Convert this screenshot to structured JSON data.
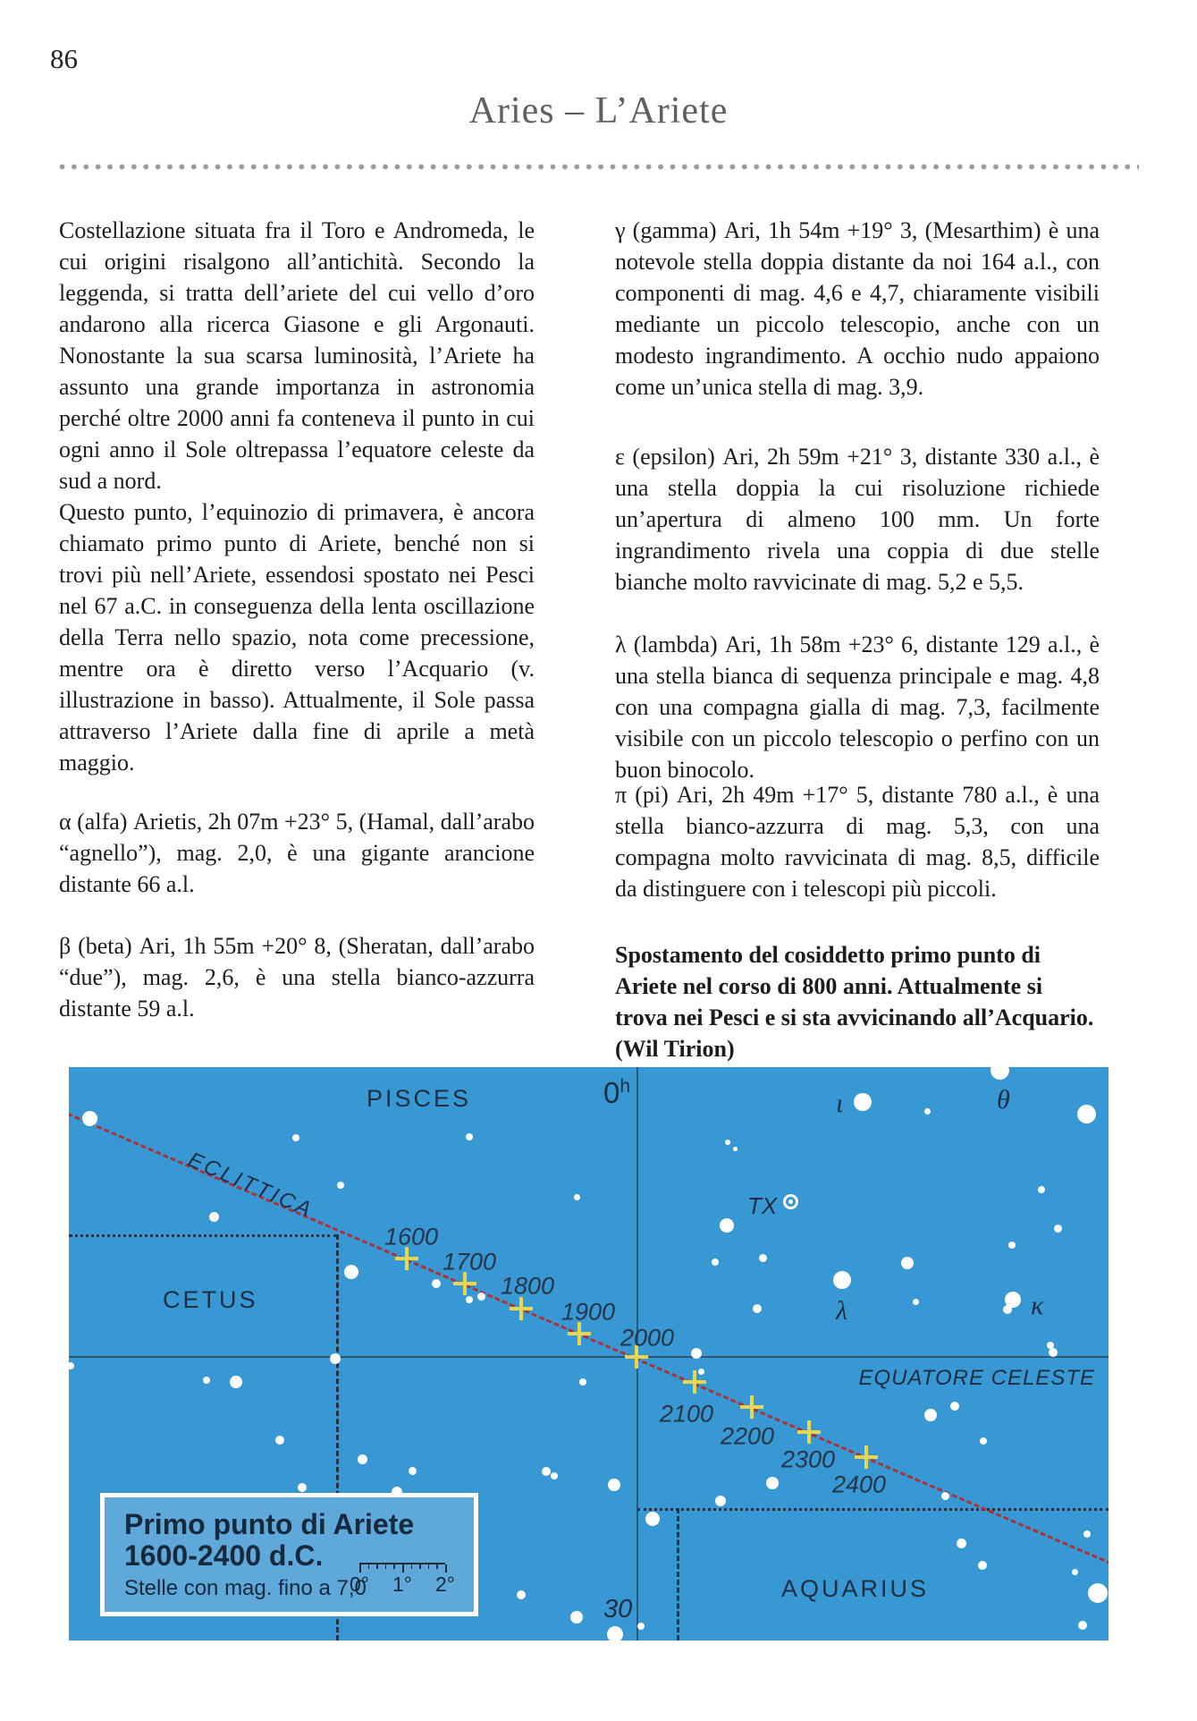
{
  "page": {
    "number": "86",
    "title": "Aries – L’Ariete"
  },
  "article": {
    "left": [
      {
        "text": "Costellazione situata fra il Toro e Andromeda, le cui origini risalgono all’antichità. Secondo la leggenda, si tratta dell’ariete del cui vello d’oro andarono alla ricerca Giasone e gli Argonauti. Nonostante la sua scarsa luminosità, l’Ariete ha assunto una grande importanza in astronomia perché oltre 2000 anni fa conteneva il punto in cui ogni anno il Sole oltrepassa l’equatore celeste da sud a nord."
      },
      {
        "text": "Questo punto, l’equinozio di primavera, è ancora chiamato primo punto di Ariete, benché non si trovi più nell’Ariete, essendosi spostato nei Pesci nel 67 a.C. in conseguenza della lenta oscillazione della Terra nello spazio, nota come precessione, mentre ora è diretto verso l’Acquario (v. illustrazione in basso). Attualmente, il Sole passa attraverso l’Ariete dalla fine di aprile a metà maggio."
      },
      {
        "text": "α (alfa) Arietis, 2h 07m +23° 5, (Hamal, dall’arabo “agnello”), mag. 2,0, è una gigante arancione distante 66 a.l."
      },
      {
        "text": "β (beta) Ari, 1h 55m +20° 8, (Sheratan, dall’arabo “due”), mag. 2,6, è una stella bianco-azzurra distante 59 a.l."
      }
    ],
    "right": [
      {
        "text": "γ (gamma) Ari, 1h 54m +19° 3, (Mesarthim) è una notevole stella doppia distante da noi 164 a.l., con componenti di mag. 4,6 e 4,7, chiaramente visibili mediante un piccolo telescopio, anche con un modesto ingrandimento. A occhio nudo appaiono come un’unica stella di mag. 3,9."
      },
      {
        "text": "ε (epsilon) Ari, 2h 59m +21° 3, distante 330 a.l., è una stella doppia la cui risoluzione richiede un’apertura di almeno 100 mm. Un forte ingrandimento rivela una coppia di due stelle bianche molto ravvicinate di mag. 5,2 e 5,5."
      },
      {
        "text": "λ (lambda) Ari, 1h 58m +23° 6, distante 129 a.l., è una stella bianca di sequenza principale e mag. 4,8 con una compagna gialla di mag. 7,3, facilmente visibile con un piccolo telescopio o perfino con un buon binocolo."
      },
      {
        "text": "π (pi) Ari, 2h 49m +17° 5, distante 780 a.l., è una stella bianco-azzurra di mag. 5,3, con una compagna molto ravvicinata di mag. 8,5, difficile da distinguere con i telescopi più piccoli."
      },
      {
        "text": "Spostamento del cosiddetto primo punto di Ariete nel corso di 800 anni. Attualmente si trova nei Pesci e si sta avvicinando all’Acquario. (Wil Tirion)"
      }
    ]
  },
  "map": {
    "colors": {
      "background": "#3898d4",
      "legend_fill": "#5ea8da",
      "line": "#2a5876",
      "boundary": "#223349",
      "ecliptic_red": "#a93338",
      "cross_yellow": "#e9d64f",
      "label_navy": "#1e2d42",
      "star_white": "#ffffff"
    },
    "labels": {
      "pisces": "PISCES",
      "cetus": "CETUS",
      "aquarius": "AQUARIUS",
      "ecliptic": "ECLITTICA",
      "equator": "EQUATORE CELESTE",
      "ra_hour": "0",
      "ra_hour_sup": "h",
      "declination": "30",
      "iota": "ι",
      "theta": "θ",
      "lambda": "λ",
      "kappa": "κ",
      "tx": "TX"
    },
    "years": [
      {
        "year": "1600",
        "cross": [
          378,
          214
        ],
        "label": [
          383,
          190
        ]
      },
      {
        "year": "1700",
        "cross": [
          443,
          242
        ],
        "label": [
          448,
          218
        ]
      },
      {
        "year": "1800",
        "cross": [
          506,
          270
        ],
        "label": [
          513,
          245
        ]
      },
      {
        "year": "1900",
        "cross": [
          571,
          298
        ],
        "label": [
          581,
          274
        ]
      },
      {
        "year": "2000",
        "cross": [
          635,
          324
        ],
        "label": [
          647,
          303
        ]
      },
      {
        "year": "2100",
        "cross": [
          700,
          352
        ],
        "label": [
          691,
          388
        ]
      },
      {
        "year": "2200",
        "cross": [
          764,
          380
        ],
        "label": [
          759,
          413
        ]
      },
      {
        "year": "2300",
        "cross": [
          828,
          408
        ],
        "label": [
          827,
          439
        ]
      },
      {
        "year": "2400",
        "cross": [
          892,
          436
        ],
        "label": [
          884,
          467
        ]
      }
    ],
    "stars": [
      [
        23,
        57,
        8.5
      ],
      [
        254,
        79,
        4
      ],
      [
        304,
        132,
        4
      ],
      [
        162,
        167,
        5.5
      ],
      [
        448,
        78,
        4
      ],
      [
        568,
        145,
        3.5
      ],
      [
        888,
        39,
        10
      ],
      [
        960,
        49,
        3.5
      ],
      [
        1041,
        3,
        10.5
      ],
      [
        1138,
        52,
        10.5
      ],
      [
        737,
        84,
        3
      ],
      [
        745,
        91,
        2.5
      ],
      [
        736,
        177,
        8
      ],
      [
        1088,
        137,
        4
      ],
      [
        316,
        229,
        8
      ],
      [
        411,
        242,
        5
      ],
      [
        448,
        260,
        4
      ],
      [
        461,
        256,
        4.5
      ],
      [
        776,
        213,
        4.5
      ],
      [
        723,
        218,
        4
      ],
      [
        938,
        219,
        7
      ],
      [
        865,
        238,
        10
      ],
      [
        770,
        270,
        5
      ],
      [
        947,
        262,
        3.5
      ],
      [
        1056,
        260,
        9
      ],
      [
        1050,
        271,
        5
      ],
      [
        1106,
        180,
        4.5
      ],
      [
        1055,
        199,
        4
      ],
      [
        1098,
        311,
        4
      ],
      [
        1101,
        319,
        5
      ],
      [
        298,
        326,
        6
      ],
      [
        154,
        350,
        4
      ],
      [
        187,
        352,
        7
      ],
      [
        2,
        334,
        4
      ],
      [
        575,
        352,
        4
      ],
      [
        702,
        320,
        6
      ],
      [
        707,
        340,
        3.5
      ],
      [
        236,
        417,
        5
      ],
      [
        328,
        438,
        5.5
      ],
      [
        384,
        451,
        4.5
      ],
      [
        261,
        470,
        5
      ],
      [
        367,
        475,
        6
      ],
      [
        534,
        452,
        5
      ],
      [
        543,
        457,
        4
      ],
      [
        610,
        467,
        7
      ],
      [
        729,
        485,
        6
      ],
      [
        787,
        465,
        7
      ],
      [
        506,
        590,
        5
      ],
      [
        568,
        615,
        7
      ],
      [
        611,
        634,
        9
      ],
      [
        640,
        625,
        4
      ],
      [
        653,
        505,
        8
      ],
      [
        964,
        389,
        7
      ],
      [
        991,
        379,
        5
      ],
      [
        1023,
        418,
        4
      ],
      [
        980,
        479,
        4.5
      ],
      [
        998,
        532,
        5.5
      ],
      [
        1022,
        557,
        5
      ],
      [
        1139,
        522,
        4
      ],
      [
        1125,
        564,
        3.5
      ],
      [
        1151,
        588,
        11
      ],
      [
        1134,
        624,
        5
      ]
    ],
    "legend": {
      "title_line1": "Primo punto di Ariete",
      "title_line2": "1600-2400 d.C.",
      "subtitle": "Stelle con mag. fino a 7,0",
      "scale_labels": [
        "0°",
        "1°",
        "2°"
      ]
    }
  }
}
